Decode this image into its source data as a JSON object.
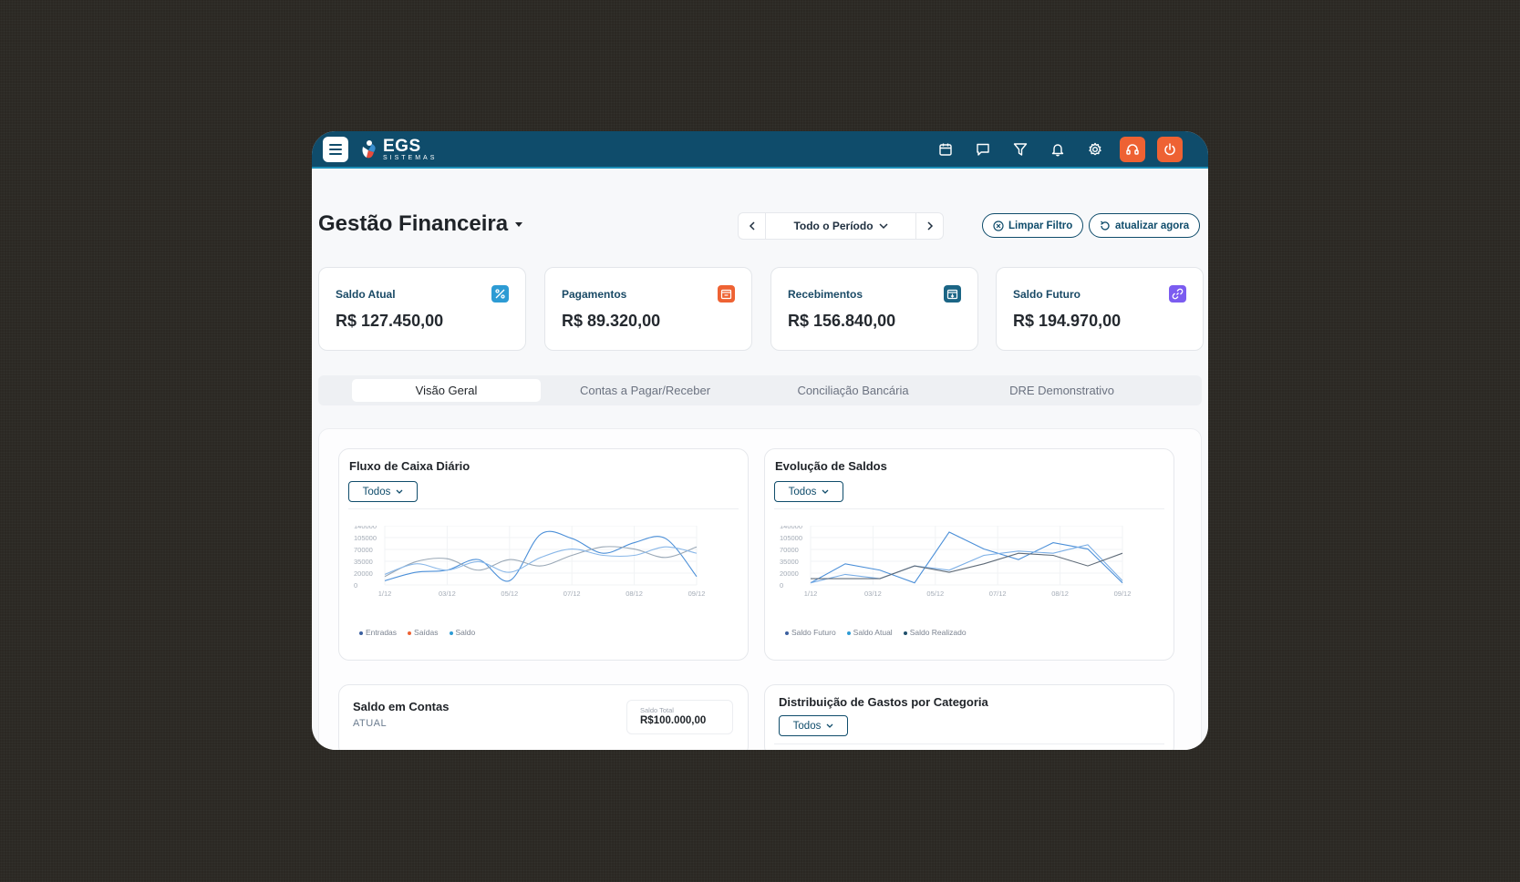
{
  "app": {
    "logo_text": "EGS",
    "logo_sub": "SISTEMAS"
  },
  "topbar": {
    "icons": [
      "calendar-icon",
      "chat-icon",
      "filter-icon",
      "bell-icon",
      "gear-icon",
      "headset-icon",
      "power-icon"
    ]
  },
  "header": {
    "title": "Gestão Financeira",
    "period_label": "Todo o Período",
    "clear_filter": "Limpar Filtro",
    "refresh": "atualizar agora"
  },
  "cards": [
    {
      "title": "Saldo Atual",
      "value": "R$ 127.450,00",
      "icon": "percent-icon",
      "color": "#2d9bd4"
    },
    {
      "title": "Pagamentos",
      "value": "R$ 89.320,00",
      "icon": "calendar-icon",
      "color": "#ee6233"
    },
    {
      "title": "Recebimentos",
      "value": "R$ 156.840,00",
      "icon": "calendar-icon",
      "color": "#1b6585"
    },
    {
      "title": "Saldo Futuro",
      "value": "R$ 194.970,00",
      "icon": "link-icon",
      "color": "#7b5cf0"
    }
  ],
  "tabs": [
    "Visão Geral",
    "Contas a Pagar/Receber",
    "Conciliação Bancária",
    "DRE Demonstrativo"
  ],
  "fluxo": {
    "title": "Fluxo de Caixa Diário",
    "filter": "Todos"
  },
  "evolucao": {
    "title": "Evolução de Saldos",
    "filter": "Todos"
  },
  "saldo_contas": {
    "title": "Saldo em Contas",
    "subtitle": "ATUAL",
    "total_label": "Saldo Total",
    "total_value": "R$100.000,00"
  },
  "distribuicao": {
    "title": "Distribuição de Gastos por Categoria",
    "filter": "Todos"
  },
  "chart_data": [
    {
      "type": "line",
      "x": [
        "1/12",
        "02/12",
        "03/12",
        "04/12",
        "05/12",
        "06/12",
        "07/12",
        "07/12b",
        "08/12",
        "09/12",
        "10/12"
      ],
      "xticks": [
        "1/12",
        "03/12",
        "05/12",
        "07/12",
        "08/12",
        "09/12"
      ],
      "yticks": [
        "140000",
        "105000",
        "70000",
        "35000",
        "20000",
        "0"
      ],
      "ylim": [
        0,
        140000
      ],
      "series": [
        {
          "name": "Entradas",
          "color": "#4b8fd8",
          "values": [
            10000,
            30000,
            35000,
            60000,
            10000,
            120000,
            110000,
            75000,
            100000,
            110000,
            20000
          ]
        },
        {
          "name": "Saídas",
          "color": "#9aa8b6",
          "values": [
            20000,
            55000,
            62000,
            35000,
            60000,
            45000,
            70000,
            90000,
            85000,
            65000,
            90000
          ]
        },
        {
          "name": "Saldo",
          "color": "#89b7e8",
          "values": [
            25000,
            50000,
            35000,
            55000,
            30000,
            65000,
            85000,
            70000,
            70000,
            90000,
            75000
          ]
        }
      ],
      "legend": [
        {
          "name": "Entradas",
          "color": "#3a5f9f"
        },
        {
          "name": "Saídas",
          "color": "#ee6233"
        },
        {
          "name": "Saldo",
          "color": "#2d9bd4"
        }
      ]
    },
    {
      "type": "line",
      "x": [
        "1/12",
        "02/12",
        "03/12",
        "04/12",
        "05/12",
        "06/12",
        "07/12",
        "08/12",
        "09/12",
        "10/12"
      ],
      "xticks": [
        "1/12",
        "03/12",
        "05/12",
        "07/12",
        "08/12",
        "09/12"
      ],
      "yticks": [
        "140000",
        "105000",
        "70000",
        "35000",
        "20000",
        "0"
      ],
      "ylim": [
        0,
        140000
      ],
      "series": [
        {
          "name": "Saldo Futuro",
          "color": "#4b8fd8",
          "values": [
            5000,
            50000,
            35000,
            5000,
            125000,
            85000,
            60000,
            100000,
            85000,
            5000
          ]
        },
        {
          "name": "Saldo Atual",
          "color": "#7aaee6",
          "values": [
            5000,
            25000,
            15000,
            45000,
            35000,
            70000,
            80000,
            75000,
            95000,
            10000
          ]
        },
        {
          "name": "Saldo Realizado",
          "color": "#5f6b78",
          "values": [
            15000,
            15000,
            15000,
            45000,
            30000,
            50000,
            75000,
            70000,
            45000,
            75000
          ]
        }
      ],
      "legend": [
        {
          "name": "Saldo Futuro",
          "color": "#3a5f9f"
        },
        {
          "name": "Saldo Atual",
          "color": "#2d9bd4"
        },
        {
          "name": "Saldo Realizado",
          "color": "#1f4f6b"
        }
      ]
    }
  ]
}
